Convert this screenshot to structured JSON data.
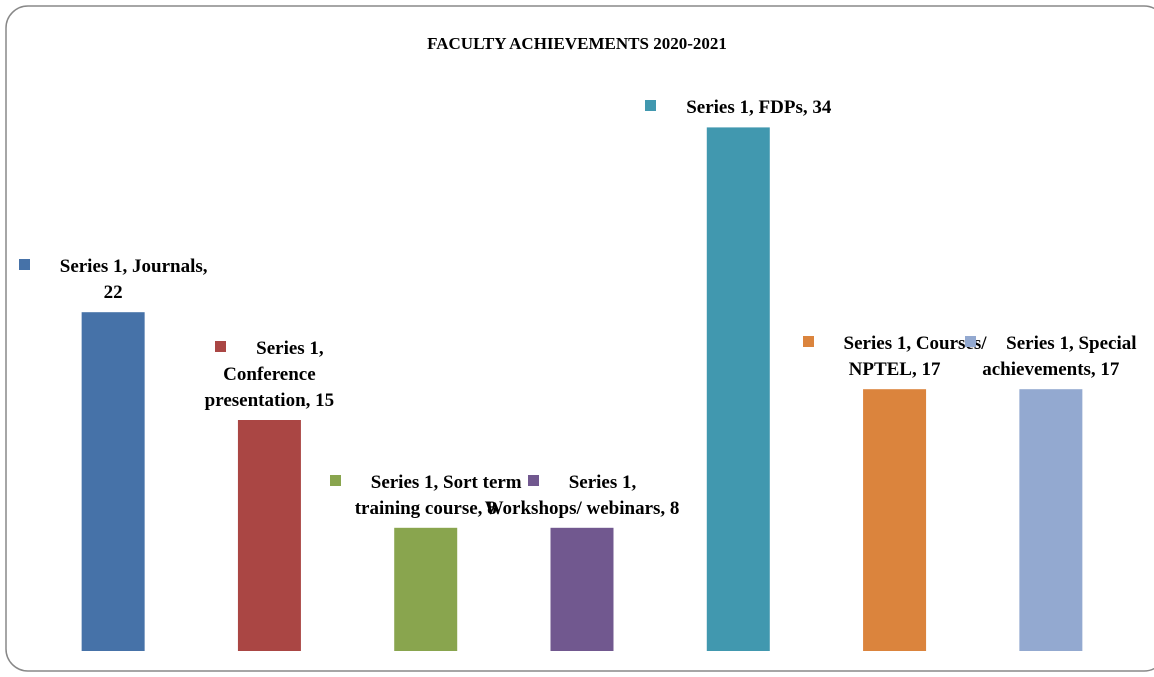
{
  "chart_data": {
    "type": "bar",
    "title": "FACULTY ACHIEVEMENTS 2020-2021",
    "values": [
      22,
      15,
      8,
      8,
      34,
      17,
      17
    ],
    "value_labels": [
      "Series 1, Journals, 22",
      "Series 1, Conference presentation, 15",
      "Series 1, Sort term training course, 8",
      "Series 1, Workshops/ webinars, 8",
      "Series 1, FDPs, 34",
      "Series 1, Courses/ NPTEL, 17",
      "Series 1, Special achievements, 17"
    ],
    "colors": [
      "#4672a8",
      "#aa4644",
      "#89a54e",
      "#71588f",
      "#4198af",
      "#db843d",
      "#93a9d0"
    ],
    "ylim": [
      0,
      40
    ]
  }
}
